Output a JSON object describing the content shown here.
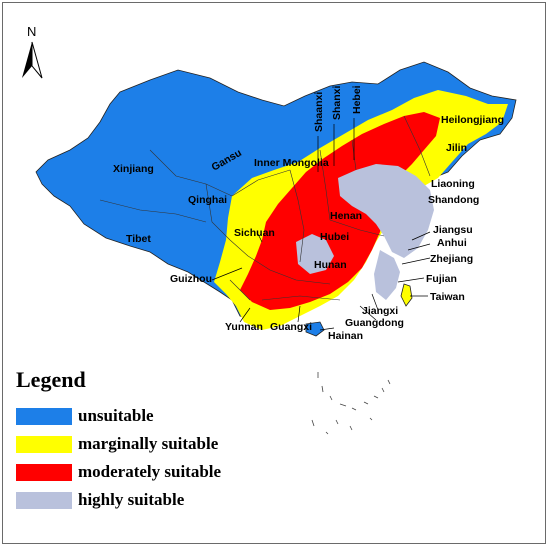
{
  "north_arrow": {
    "label": "N"
  },
  "legend": {
    "title": "Legend",
    "items": [
      {
        "label": "unsuitable",
        "color": "#1d7fe8"
      },
      {
        "label": "marginally suitable",
        "color": "#ffff00"
      },
      {
        "label": "moderately suitable",
        "color": "#ff0000"
      },
      {
        "label": "highly suitable",
        "color": "#b9c1dc"
      }
    ]
  },
  "provinces": {
    "xinjiang": "Xinjiang",
    "tibet": "Tibet",
    "qinghai": "Qinghai",
    "gansu": "Gansu",
    "inner_mongolia": "Inner Mongolia",
    "shaanxi": "Shaanxi",
    "shanxi": "Shanxi",
    "hebei": "Hebei",
    "heilongjiang": "Heilongjiang",
    "jilin": "Jilin",
    "liaoning": "Liaoning",
    "shandong": "Shandong",
    "henan": "Henan",
    "jiangsu": "Jiangsu",
    "anhui": "Anhui",
    "hubei": "Hubei",
    "zhejiang": "Zhejiang",
    "sichuan": "Sichuan",
    "hunan": "Hunan",
    "fujian": "Fujian",
    "taiwan": "Taiwan",
    "guizhou": "Guizhou",
    "jiangxi": "Jiangxi",
    "guangdong": "Guangdong",
    "guangxi": "Guangxi",
    "yunnan": "Yunnan",
    "hainan": "Hainan"
  }
}
